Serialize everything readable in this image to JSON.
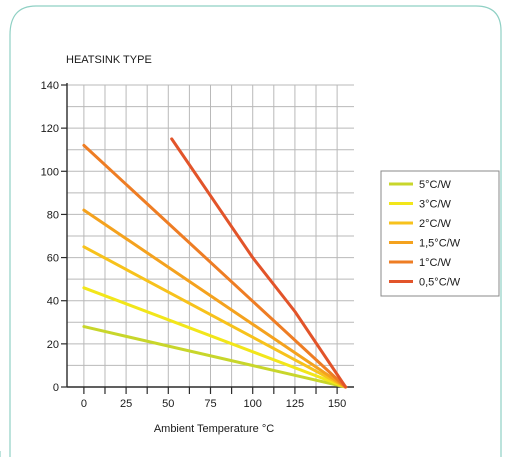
{
  "chart_data": {
    "type": "line",
    "title": "HEATSINK TYPE",
    "xlabel": "Ambient Temperature °C",
    "ylabel": "",
    "xlim": [
      -10,
      160
    ],
    "ylim": [
      0,
      140
    ],
    "x_ticks": [
      0,
      25,
      50,
      75,
      100,
      125,
      150
    ],
    "y_ticks": [
      0,
      20,
      40,
      60,
      80,
      100,
      120,
      140
    ],
    "grid": true,
    "legend_position": "right",
    "series": [
      {
        "name": "5°C/W",
        "color": "#c8d62b",
        "points": [
          [
            0,
            28
          ],
          [
            155,
            0
          ]
        ]
      },
      {
        "name": "3°C/W",
        "color": "#f2e61a",
        "points": [
          [
            0,
            46
          ],
          [
            155,
            0
          ]
        ]
      },
      {
        "name": "2°C/W",
        "color": "#f7c21c",
        "points": [
          [
            0,
            65
          ],
          [
            155,
            0
          ]
        ]
      },
      {
        "name": "1,5°C/W",
        "color": "#f4a21e",
        "points": [
          [
            0,
            82
          ],
          [
            155,
            0
          ]
        ]
      },
      {
        "name": "1°C/W",
        "color": "#ee7d24",
        "points": [
          [
            0,
            112
          ],
          [
            155,
            0
          ]
        ]
      },
      {
        "name": "0,5°C/W",
        "color": "#e2542a",
        "points": [
          [
            52,
            115
          ],
          [
            100,
            60
          ],
          [
            125,
            35
          ],
          [
            155,
            0
          ]
        ]
      }
    ]
  },
  "frame": {
    "border_color": "#8fd0c4"
  }
}
